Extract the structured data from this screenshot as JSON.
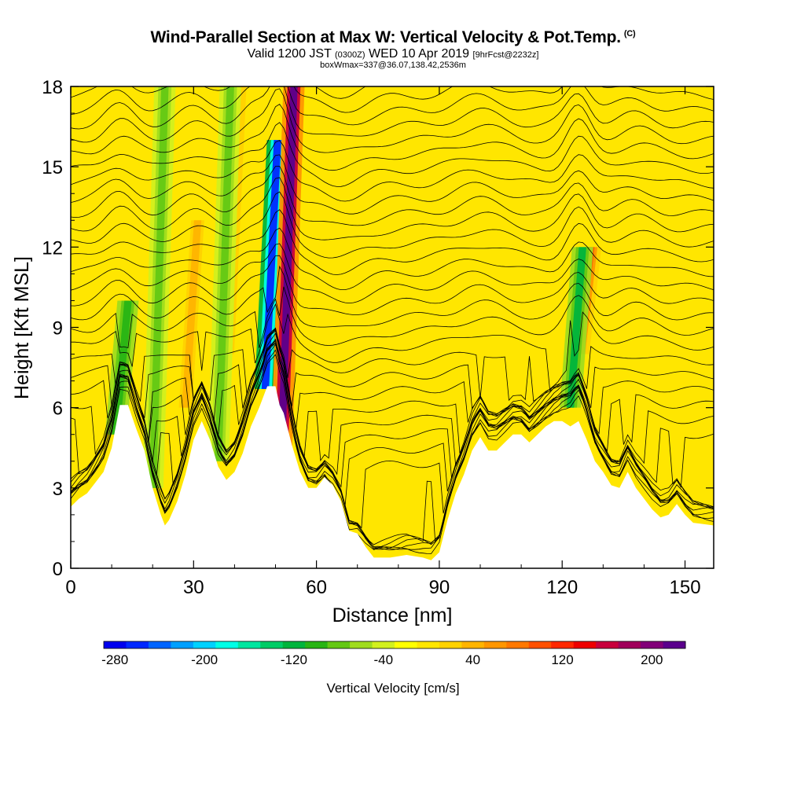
{
  "header": {
    "title": "Wind-Parallel Section at Max W: Vertical Velocity & Pot.Temp.",
    "title_tag": "(C)",
    "valid_prefix": "Valid 1200 JST",
    "valid_utc": "(0300Z)",
    "valid_date": "WED 10 Apr 2019",
    "forecast_info": "[9hrFcst@2232z]",
    "box_info": "boxWmax=337@36.07,138.42,2536m"
  },
  "chart_data": {
    "type": "heatmap",
    "xlabel": "Distance [nm]",
    "ylabel": "Height [Kft MSL]",
    "xlim": [
      0,
      157
    ],
    "ylim": [
      0,
      18
    ],
    "x_ticks": [
      0,
      30,
      60,
      90,
      120,
      150
    ],
    "x_tick_labels": [
      "0",
      "30",
      "60",
      "90",
      "120",
      "150"
    ],
    "y_ticks": [
      0,
      3,
      6,
      9,
      12,
      15,
      18
    ],
    "y_tick_labels": [
      "0",
      "3",
      "6",
      "9",
      "12",
      "15",
      "18"
    ],
    "terrain_profile": [
      [
        0,
        2.3
      ],
      [
        2,
        2.6
      ],
      [
        4,
        2.8
      ],
      [
        6,
        3.2
      ],
      [
        8,
        3.6
      ],
      [
        10,
        4.5
      ],
      [
        12,
        6.1
      ],
      [
        14,
        6.1
      ],
      [
        16,
        5.2
      ],
      [
        18,
        4.4
      ],
      [
        20,
        3.0
      ],
      [
        22,
        2.0
      ],
      [
        23,
        1.6
      ],
      [
        24,
        1.8
      ],
      [
        26,
        2.5
      ],
      [
        28,
        3.5
      ],
      [
        30,
        4.8
      ],
      [
        32,
        5.5
      ],
      [
        34,
        4.8
      ],
      [
        36,
        3.8
      ],
      [
        38,
        3.3
      ],
      [
        40,
        3.6
      ],
      [
        42,
        4.3
      ],
      [
        44,
        5.3
      ],
      [
        46,
        6.0
      ],
      [
        48,
        6.8
      ],
      [
        50,
        6.8
      ],
      [
        51,
        6.1
      ],
      [
        52,
        5.8
      ],
      [
        54,
        4.6
      ],
      [
        56,
        3.6
      ],
      [
        58,
        3.0
      ],
      [
        60,
        3.0
      ],
      [
        62,
        3.4
      ],
      [
        64,
        3.1
      ],
      [
        66,
        2.5
      ],
      [
        68,
        1.4
      ],
      [
        70,
        1.3
      ],
      [
        72,
        0.8
      ],
      [
        74,
        0.4
      ],
      [
        78,
        0.4
      ],
      [
        82,
        0.5
      ],
      [
        86,
        0.4
      ],
      [
        88,
        0.3
      ],
      [
        90,
        0.6
      ],
      [
        92,
        1.8
      ],
      [
        94,
        2.8
      ],
      [
        96,
        3.5
      ],
      [
        98,
        4.4
      ],
      [
        100,
        4.9
      ],
      [
        102,
        4.4
      ],
      [
        104,
        4.4
      ],
      [
        106,
        4.7
      ],
      [
        108,
        5.0
      ],
      [
        110,
        5.0
      ],
      [
        112,
        4.7
      ],
      [
        114,
        5.0
      ],
      [
        116,
        5.3
      ],
      [
        118,
        5.5
      ],
      [
        120,
        5.5
      ],
      [
        122,
        5.3
      ],
      [
        124,
        5.5
      ],
      [
        126,
        4.8
      ],
      [
        128,
        4.0
      ],
      [
        130,
        3.6
      ],
      [
        132,
        3.1
      ],
      [
        134,
        3.0
      ],
      [
        136,
        3.6
      ],
      [
        138,
        3.0
      ],
      [
        140,
        2.6
      ],
      [
        142,
        2.2
      ],
      [
        144,
        1.9
      ],
      [
        146,
        2.0
      ],
      [
        148,
        2.4
      ],
      [
        150,
        2.0
      ],
      [
        152,
        1.7
      ],
      [
        157,
        1.6
      ]
    ],
    "vertical_velocity_features": [
      {
        "kind": "downdraft",
        "x": 48.5,
        "y_top": 16,
        "y_bottom": 6.7,
        "value": -280,
        "label": "min"
      },
      {
        "kind": "updraft",
        "x": 52.5,
        "y_top": 18,
        "y_bottom": 4.5,
        "value": 337,
        "label": "max"
      },
      {
        "kind": "updraft",
        "x": 125,
        "y_top": 12,
        "y_bottom": 8,
        "value": 160
      },
      {
        "kind": "downdraft",
        "x": 123,
        "y_top": 12,
        "y_bottom": 6,
        "value": -100
      },
      {
        "kind": "updraft",
        "x": 29,
        "y_top": 13,
        "y_bottom": 6,
        "value": 80
      },
      {
        "kind": "updraft",
        "x": 40,
        "y_top": 18,
        "y_bottom": 8,
        "value": 70
      },
      {
        "kind": "downdraft",
        "x": 12,
        "y_top": 10,
        "y_bottom": 5,
        "value": -90
      },
      {
        "kind": "downdraft",
        "x": 21,
        "y_top": 18,
        "y_bottom": 3,
        "value": -60
      },
      {
        "kind": "downdraft",
        "x": 37,
        "y_top": 18,
        "y_bottom": 4,
        "value": -60
      }
    ],
    "contour_field": "Potential Temperature",
    "colorbar": {
      "label": "Vertical Velocity [cm/s]",
      "tick_labels": [
        "-280",
        "-200",
        "-120",
        "-40",
        "40",
        "120",
        "200"
      ],
      "colors": [
        "#0000ee",
        "#0028ff",
        "#0064ff",
        "#00a0ff",
        "#00d2ff",
        "#00ffe6",
        "#00e6a0",
        "#00cc66",
        "#00b43c",
        "#28b414",
        "#64c814",
        "#a0dc1e",
        "#d2f01e",
        "#ffff00",
        "#ffe600",
        "#ffd200",
        "#ffb400",
        "#ff9600",
        "#ff7800",
        "#ff5000",
        "#ff2800",
        "#ee0000",
        "#c8003c",
        "#a0005a",
        "#820078",
        "#5a008c"
      ]
    }
  }
}
